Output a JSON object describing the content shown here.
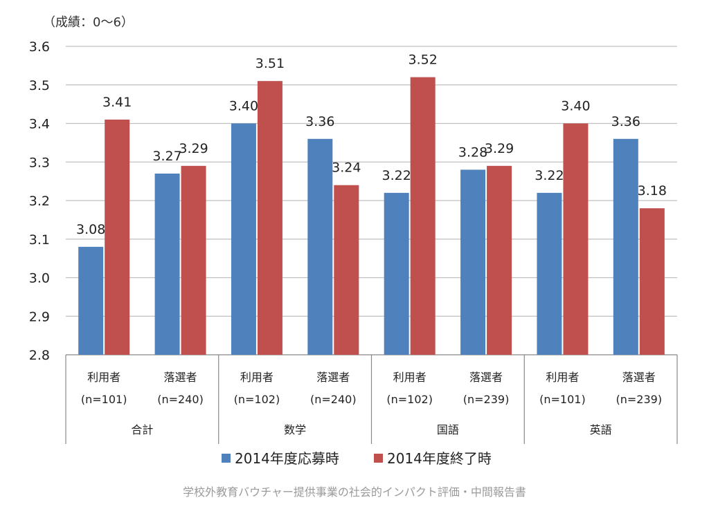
{
  "chart_data": {
    "type": "bar",
    "ylabel": "（成績：0〜6）",
    "ylim": [
      2.8,
      3.6
    ],
    "yticks": [
      "2.8",
      "2.9",
      "3.0",
      "3.1",
      "3.2",
      "3.3",
      "3.4",
      "3.5",
      "3.6"
    ],
    "grid": true,
    "legend_position": "bottom",
    "categories": [
      {
        "label": "利用者",
        "n": "(n=101)",
        "group": "合計"
      },
      {
        "label": "落選者",
        "n": "(n=240)",
        "group": "合計"
      },
      {
        "label": "利用者",
        "n": "(n=102)",
        "group": "数学"
      },
      {
        "label": "落選者",
        "n": "(n=240)",
        "group": "数学"
      },
      {
        "label": "利用者",
        "n": "(n=102)",
        "group": "国語"
      },
      {
        "label": "落選者",
        "n": "(n=239)",
        "group": "国語"
      },
      {
        "label": "利用者",
        "n": "(n=101)",
        "group": "英語"
      },
      {
        "label": "落選者",
        "n": "(n=239)",
        "group": "英語"
      }
    ],
    "groups": [
      "合計",
      "数学",
      "国語",
      "英語"
    ],
    "series": [
      {
        "name": "2014年度応募時",
        "color": "#4f81bd",
        "values": [
          3.08,
          3.27,
          3.4,
          3.36,
          3.22,
          3.28,
          3.22,
          3.36
        ],
        "labels": [
          "3.08",
          "3.27",
          "3.40",
          "3.36",
          "3.22",
          "3.28",
          "3.22",
          "3.36"
        ]
      },
      {
        "name": "2014年度終了時",
        "color": "#c0504d",
        "values": [
          3.41,
          3.29,
          3.51,
          3.24,
          3.52,
          3.29,
          3.4,
          3.18
        ],
        "labels": [
          "3.41",
          "3.29",
          "3.51",
          "3.24",
          "3.52",
          "3.29",
          "3.40",
          "3.18"
        ]
      }
    ]
  },
  "source": "学校外教育バウチャー提供事業の社会的インパクト評価・中間報告書"
}
